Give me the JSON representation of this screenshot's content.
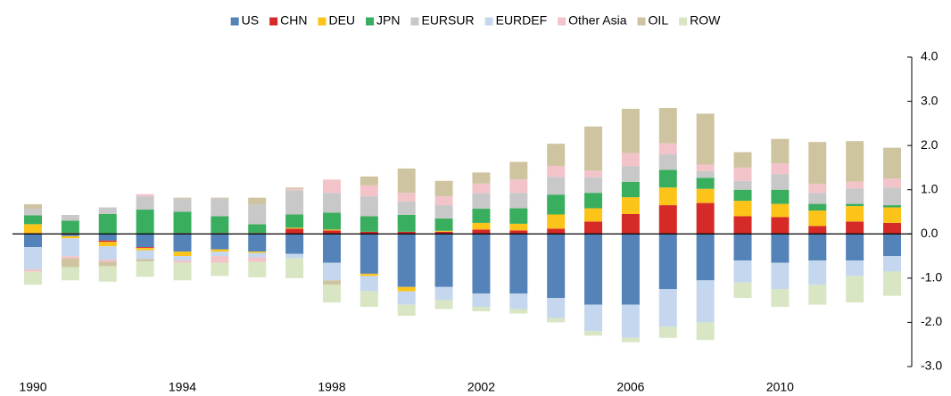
{
  "chart_data": {
    "type": "stacked_bar",
    "categories": [
      "1990",
      null,
      null,
      null,
      "1994",
      null,
      null,
      null,
      "1998",
      null,
      null,
      null,
      "2002",
      null,
      null,
      null,
      "2006",
      null,
      null,
      null,
      "2010",
      null,
      null,
      null
    ],
    "series": [
      {
        "name": "US",
        "color": "#5383b8",
        "values": [
          -0.3,
          -0.05,
          -0.15,
          -0.3,
          -0.4,
          -0.35,
          -0.4,
          -0.45,
          -0.65,
          -0.9,
          -1.2,
          -1.2,
          -1.35,
          -1.35,
          -1.45,
          -1.6,
          -1.6,
          -1.25,
          -1.05,
          -0.6,
          -0.65,
          -0.6,
          -0.6,
          -0.5
        ]
      },
      {
        "name": "CHN",
        "color": "#d62a28",
        "values": [
          0.02,
          0.02,
          -0.03,
          -0.02,
          0.02,
          0.02,
          0.02,
          0.12,
          0.08,
          0.05,
          0.05,
          0.05,
          0.1,
          0.08,
          0.12,
          0.28,
          0.45,
          0.65,
          0.7,
          0.4,
          0.38,
          0.18,
          0.28,
          0.25
        ]
      },
      {
        "name": "DEU",
        "color": "#fcc419",
        "values": [
          0.2,
          -0.05,
          -0.1,
          -0.05,
          -0.1,
          -0.05,
          -0.03,
          0.02,
          0.02,
          -0.05,
          -0.1,
          0.02,
          0.15,
          0.15,
          0.32,
          0.3,
          0.38,
          0.4,
          0.32,
          0.35,
          0.3,
          0.35,
          0.35,
          0.35
        ]
      },
      {
        "name": "JPN",
        "color": "#3aae5f",
        "values": [
          0.2,
          0.28,
          0.45,
          0.55,
          0.48,
          0.38,
          0.2,
          0.3,
          0.38,
          0.35,
          0.38,
          0.28,
          0.32,
          0.35,
          0.45,
          0.35,
          0.35,
          0.4,
          0.25,
          0.25,
          0.32,
          0.15,
          0.05,
          0.05
        ]
      },
      {
        "name": "EURSUR",
        "color": "#c8c8c8",
        "values": [
          0.15,
          0.13,
          0.15,
          0.3,
          0.3,
          0.4,
          0.45,
          0.55,
          0.45,
          0.45,
          0.3,
          0.3,
          0.35,
          0.35,
          0.4,
          0.35,
          0.35,
          0.35,
          0.15,
          0.2,
          0.35,
          0.25,
          0.35,
          0.4
        ]
      },
      {
        "name": "EURDEF",
        "color": "#c5d7ee",
        "values": [
          -0.5,
          -0.4,
          -0.3,
          -0.2,
          -0.1,
          -0.1,
          -0.1,
          -0.1,
          -0.4,
          -0.35,
          -0.3,
          -0.3,
          -0.3,
          -0.35,
          -0.45,
          -0.6,
          -0.75,
          -0.85,
          -0.95,
          -0.5,
          -0.6,
          -0.55,
          -0.35,
          -0.35
        ]
      },
      {
        "name": "Other Asia",
        "color": "#f2c4c9",
        "values": [
          -0.05,
          -0.05,
          -0.05,
          0.05,
          -0.05,
          -0.15,
          -0.1,
          0.03,
          0.3,
          0.25,
          0.2,
          0.2,
          0.22,
          0.3,
          0.25,
          0.15,
          0.3,
          0.25,
          0.15,
          0.3,
          0.25,
          0.2,
          0.15,
          0.2
        ]
      },
      {
        "name": "OIL",
        "color": "#cfc4a0",
        "values": [
          0.1,
          -0.2,
          -0.1,
          -0.05,
          0.02,
          0.02,
          0.15,
          0.03,
          -0.1,
          0.2,
          0.55,
          0.35,
          0.25,
          0.4,
          0.5,
          1.0,
          1.0,
          0.8,
          1.15,
          0.35,
          0.55,
          0.95,
          0.92,
          0.7
        ]
      },
      {
        "name": "ROW",
        "color": "#d8e6c4",
        "values": [
          -0.3,
          -0.3,
          -0.35,
          -0.35,
          -0.4,
          -0.3,
          -0.35,
          -0.45,
          -0.4,
          -0.35,
          -0.25,
          -0.2,
          -0.1,
          -0.1,
          -0.1,
          -0.1,
          -0.1,
          -0.25,
          -0.4,
          -0.35,
          -0.4,
          -0.45,
          -0.6,
          -0.55
        ]
      }
    ],
    "ylim": [
      -3,
      4
    ],
    "yticks": [
      {
        "value": -3,
        "label": "-3.0"
      },
      {
        "value": -2,
        "label": "-2.0"
      },
      {
        "value": -1,
        "label": "-1.0"
      },
      {
        "value": 0,
        "label": "0.0"
      },
      {
        "value": 1,
        "label": "1.0"
      },
      {
        "value": 2,
        "label": "2.0"
      },
      {
        "value": 3,
        "label": "3.0"
      },
      {
        "value": 4,
        "label": "4.0"
      }
    ],
    "y_axis_side": "right",
    "legend": "top"
  }
}
